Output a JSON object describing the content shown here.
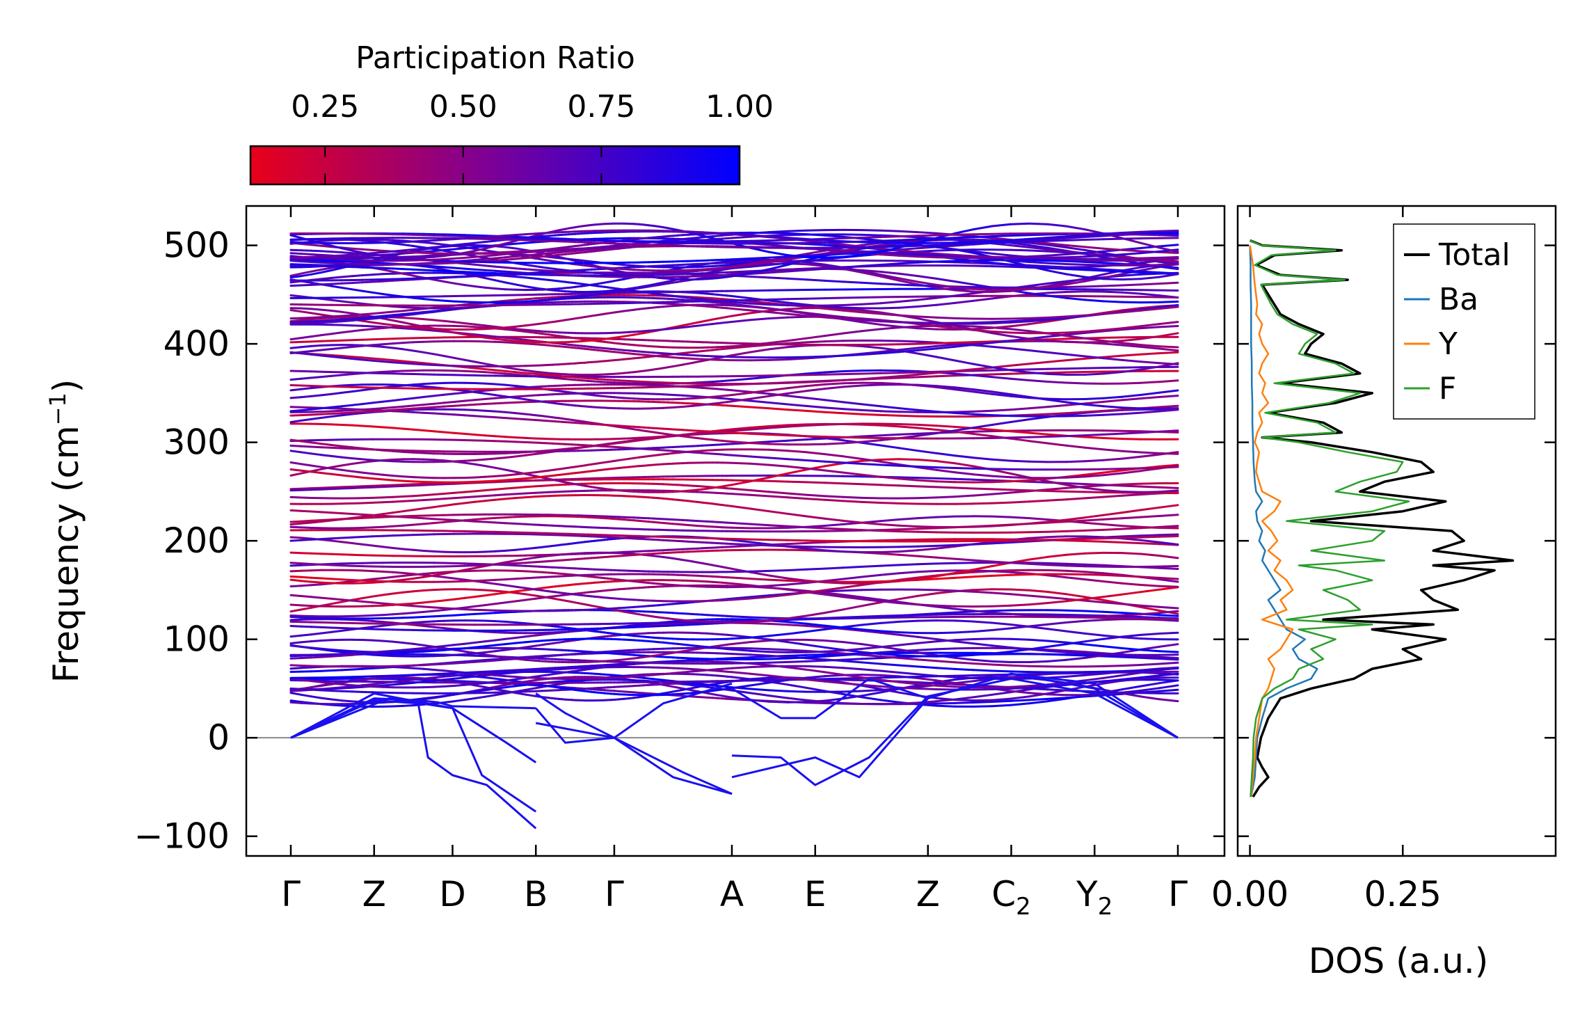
{
  "chart_data": [
    {
      "type": "line",
      "name": "phonon-band-structure",
      "ylabel": "Frequency (cm⁻¹)",
      "ylim": [
        -120,
        540
      ],
      "yticks": [
        -100,
        0,
        100,
        200,
        300,
        400,
        500
      ],
      "ytick_labels": [
        "−100",
        "0",
        "100",
        "200",
        "300",
        "400",
        "500"
      ],
      "kpath_labels": [
        "Γ",
        "Z",
        "D",
        "B",
        "Γ",
        "A",
        "E",
        "Z",
        "C",
        "Y",
        "Γ"
      ],
      "kpath_subscripts": [
        "",
        "",
        "",
        "",
        "",
        "",
        "",
        "",
        "2",
        "2",
        ""
      ],
      "kpath_positions": [
        0,
        0.85,
        1.65,
        2.5,
        3.3,
        4.5,
        5.35,
        6.5,
        7.35,
        8.2,
        9.05
      ],
      "segments": [
        [
          0,
          2.5
        ],
        [
          2.5,
          3.3
        ],
        [
          3.3,
          4.5
        ],
        [
          4.5,
          9.05
        ]
      ],
      "colormap": {
        "title": "Participation Ratio",
        "ticks": [
          0.25,
          0.5,
          0.75,
          1.0
        ],
        "tick_labels": [
          "0.25",
          "0.50",
          "0.75",
          "1.00"
        ],
        "range": [
          0.115,
          1.0
        ],
        "low_color": "#e8001a",
        "mid_color": "#7a0099",
        "high_color": "#0000ff"
      },
      "acoustic_branches": [
        {
          "k": [
            0,
            0.85,
            1.3,
            1.5,
            1.65,
            2.5,
            2.5,
            2.8,
            3.3,
            3.8,
            4.5,
            4.5,
            5.0,
            5.35,
            5.9,
            6.5,
            7.35,
            8.2,
            9.05
          ],
          "f": [
            0,
            40,
            38,
            36,
            32,
            30,
            45,
            25,
            0,
            35,
            55,
            50,
            20,
            20,
            60,
            40,
            65,
            50,
            0
          ]
        },
        {
          "k": [
            0,
            0.85,
            1.3,
            1.4,
            1.65,
            2.0,
            2.5,
            2.5,
            2.8,
            3.3,
            4.0,
            4.5,
            4.5,
            5.0,
            5.35,
            5.9,
            6.5,
            7.35,
            8.2,
            9.05
          ],
          "f": [
            0,
            38,
            35,
            -20,
            -38,
            -48,
            -92,
            30,
            -5,
            0,
            -35,
            -57,
            -18,
            -20,
            -48,
            -20,
            42,
            60,
            45,
            0
          ]
        },
        {
          "k": [
            0,
            0.85,
            1.65,
            1.95,
            2.5,
            2.5,
            3.3,
            3.9,
            4.5,
            4.5,
            5.35,
            5.8,
            6.5,
            7.35,
            8.2,
            9.05
          ],
          "f": [
            0,
            45,
            30,
            -38,
            -75,
            15,
            0,
            -40,
            -57,
            -40,
            -20,
            -40,
            40,
            65,
            55,
            0
          ]
        },
        {
          "k": [
            0,
            1.0,
            1.65,
            2.2,
            2.5
          ],
          "f": [
            0,
            40,
            30,
            -5,
            -25
          ]
        }
      ],
      "optical_band_count": 108,
      "frequency_range_optical": [
        48,
        505
      ]
    },
    {
      "type": "line",
      "name": "phonon-dos",
      "xlabel": "DOS (a.u.)",
      "xlim": [
        -0.02,
        0.5
      ],
      "xticks": [
        0,
        0.25
      ],
      "xtick_labels": [
        "0.00",
        "0.25"
      ],
      "ylim": [
        -120,
        540
      ],
      "legend_placement": "top-right",
      "series": [
        {
          "name": "Total",
          "color": "#000000",
          "f": [
            -60,
            -50,
            -40,
            -30,
            -20,
            0,
            20,
            40,
            50,
            60,
            70,
            80,
            90,
            100,
            110,
            115,
            120,
            130,
            140,
            150,
            160,
            170,
            175,
            180,
            190,
            200,
            210,
            220,
            230,
            240,
            250,
            260,
            270,
            280,
            290,
            300,
            305,
            310,
            320,
            330,
            340,
            350,
            360,
            370,
            380,
            390,
            400,
            410,
            420,
            430,
            440,
            460,
            465,
            470,
            480,
            490,
            495,
            500,
            505
          ],
          "v": [
            0.005,
            0.015,
            0.03,
            0.02,
            0.012,
            0.018,
            0.03,
            0.05,
            0.1,
            0.17,
            0.2,
            0.28,
            0.25,
            0.32,
            0.2,
            0.3,
            0.12,
            0.34,
            0.3,
            0.28,
            0.35,
            0.4,
            0.3,
            0.43,
            0.3,
            0.35,
            0.33,
            0.1,
            0.25,
            0.32,
            0.18,
            0.22,
            0.3,
            0.28,
            0.2,
            0.1,
            0.02,
            0.15,
            0.12,
            0.03,
            0.14,
            0.2,
            0.05,
            0.18,
            0.15,
            0.09,
            0.1,
            0.12,
            0.08,
            0.05,
            0.04,
            0.02,
            0.16,
            0.05,
            0.01,
            0.04,
            0.15,
            0.02,
            0.0
          ]
        },
        {
          "name": "Ba",
          "color": "#1f77b4",
          "f": [
            -60,
            -40,
            -20,
            0,
            20,
            40,
            50,
            60,
            70,
            80,
            90,
            100,
            110,
            120,
            130,
            140,
            150,
            160,
            170,
            180,
            190,
            200,
            210,
            220,
            230,
            240,
            250,
            260,
            280,
            300,
            320,
            340,
            360,
            380,
            400,
            420,
            440,
            460,
            480,
            500
          ],
          "v": [
            0.002,
            0.008,
            0.01,
            0.012,
            0.02,
            0.03,
            0.06,
            0.1,
            0.11,
            0.08,
            0.07,
            0.09,
            0.06,
            0.05,
            0.04,
            0.03,
            0.05,
            0.04,
            0.03,
            0.02,
            0.025,
            0.015,
            0.02,
            0.012,
            0.01,
            0.02,
            0.01,
            0.008,
            0.006,
            0.005,
            0.004,
            0.004,
            0.003,
            0.003,
            0.002,
            0.002,
            0.002,
            0.001,
            0.001,
            0.0
          ]
        },
        {
          "name": "Y",
          "color": "#ff7f0e",
          "f": [
            -60,
            -40,
            -20,
            0,
            20,
            40,
            50,
            60,
            70,
            80,
            90,
            100,
            110,
            120,
            130,
            140,
            150,
            160,
            170,
            180,
            190,
            200,
            210,
            220,
            230,
            240,
            250,
            260,
            270,
            280,
            290,
            300,
            310,
            320,
            330,
            340,
            350,
            360,
            370,
            380,
            390,
            400,
            410,
            420,
            430,
            440,
            460,
            480,
            500
          ],
          "v": [
            0.002,
            0.005,
            0.008,
            0.01,
            0.015,
            0.02,
            0.03,
            0.035,
            0.04,
            0.03,
            0.05,
            0.06,
            0.07,
            0.02,
            0.06,
            0.05,
            0.07,
            0.06,
            0.04,
            0.05,
            0.03,
            0.045,
            0.035,
            0.02,
            0.04,
            0.05,
            0.02,
            0.015,
            0.01,
            0.012,
            0.015,
            0.008,
            0.012,
            0.02,
            0.015,
            0.03,
            0.02,
            0.025,
            0.015,
            0.02,
            0.03,
            0.02,
            0.015,
            0.02,
            0.01,
            0.012,
            0.008,
            0.005,
            0.0
          ]
        },
        {
          "name": "F",
          "color": "#2ca02c",
          "f": [
            -60,
            -40,
            -20,
            0,
            20,
            40,
            50,
            60,
            70,
            80,
            90,
            100,
            110,
            115,
            120,
            130,
            140,
            150,
            160,
            170,
            175,
            180,
            190,
            200,
            210,
            220,
            230,
            240,
            250,
            260,
            270,
            280,
            290,
            300,
            305,
            310,
            320,
            330,
            340,
            350,
            360,
            370,
            380,
            390,
            400,
            410,
            420,
            430,
            440,
            460,
            465,
            470,
            480,
            490,
            495,
            500,
            505
          ],
          "v": [
            0.001,
            0.003,
            0.005,
            0.006,
            0.01,
            0.02,
            0.04,
            0.07,
            0.08,
            0.12,
            0.1,
            0.14,
            0.08,
            0.2,
            0.06,
            0.18,
            0.16,
            0.12,
            0.2,
            0.14,
            0.08,
            0.22,
            0.1,
            0.2,
            0.22,
            0.06,
            0.2,
            0.26,
            0.14,
            0.18,
            0.24,
            0.25,
            0.16,
            0.08,
            0.02,
            0.14,
            0.11,
            0.025,
            0.13,
            0.18,
            0.04,
            0.17,
            0.14,
            0.08,
            0.09,
            0.11,
            0.07,
            0.045,
            0.035,
            0.018,
            0.155,
            0.045,
            0.008,
            0.035,
            0.14,
            0.018,
            0.0
          ]
        }
      ]
    }
  ]
}
